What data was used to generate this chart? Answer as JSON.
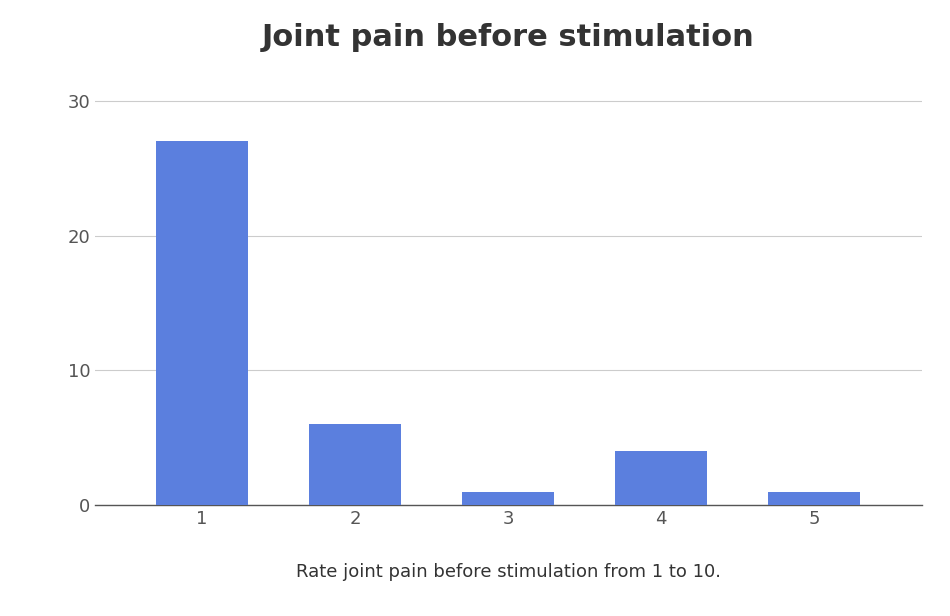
{
  "categories": [
    "1",
    "2",
    "3",
    "4",
    "5"
  ],
  "values": [
    27,
    6,
    1,
    4,
    1
  ],
  "bar_color": "#5B7FDE",
  "title": "Joint pain before stimulation",
  "xlabel": "Rate joint pain before stimulation from 1 to 10.",
  "ylabel": "",
  "ylim": [
    0,
    32
  ],
  "yticks": [
    0,
    10,
    20,
    30
  ],
  "title_fontsize": 22,
  "xlabel_fontsize": 13,
  "tick_fontsize": 13,
  "background_color": "#ffffff",
  "bar_width": 0.6,
  "grid_color": "#cccccc",
  "title_color": "#333333",
  "tick_color": "#555555",
  "spine_color": "#555555"
}
